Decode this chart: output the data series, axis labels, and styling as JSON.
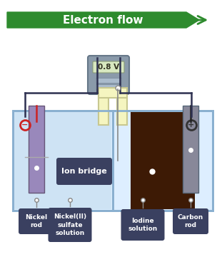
{
  "bg_color": "#ffffff",
  "arrow_color": "#2e8b2e",
  "arrow_text": "Electron flow",
  "arrow_text_color": "#ffffff",
  "voltmeter_color": "#8a9aaa",
  "voltmeter_display": "0.8 V",
  "wire_color": "#2d3050",
  "beaker1_solution_color": "#c8dff0",
  "beaker2_solution_color": "#3d1a05",
  "beaker_outline_color": "#8ab0d0",
  "beaker_bg_color": "#ddeeff",
  "nickel_rod_color": "#9988bb",
  "carbon_rod_color": "#888899",
  "ion_bridge_fill": "#f5f5c0",
  "ion_bridge_outline": "#c8c890",
  "label_box_color": "#3a4060",
  "label_text_color": "#ffffff",
  "labels": [
    "Nickel\nrod",
    "Nickel(II)\nsulfate\nsolution",
    "Iodine\nsolution",
    "Carbon\nrod"
  ],
  "ion_bridge_label": "Ion bridge",
  "neg_terminal_color": "#cc2222",
  "pos_terminal_color": "#333333"
}
